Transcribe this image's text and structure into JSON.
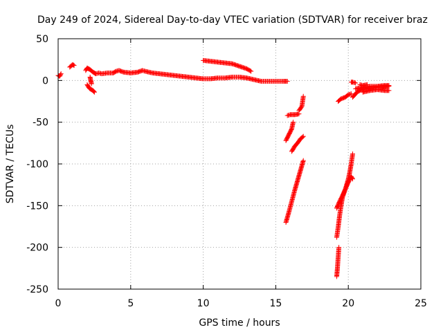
{
  "chart_data": {
    "type": "scatter",
    "title": "Day 249 of 2024, Sidereal Day-to-day VTEC variation (SDTVAR) for receiver braz",
    "xlabel": "GPS time / hours",
    "ylabel": "SDTVAR / TECUs",
    "xlim": [
      0,
      25
    ],
    "ylim": [
      -250,
      50
    ],
    "xticks": [
      0,
      5,
      10,
      15,
      20,
      25
    ],
    "yticks": [
      50,
      0,
      -50,
      -100,
      -150,
      -200,
      -250
    ],
    "grid": true,
    "legend": "none",
    "marker": "+",
    "color": "#ff0000",
    "series": [
      {
        "segments": [
          [
            [
              0.0,
              6
            ],
            [
              0.1,
              5
            ],
            [
              0.2,
              8
            ]
          ],
          [
            [
              0.8,
              16
            ],
            [
              1.0,
              19
            ],
            [
              1.1,
              18
            ]
          ],
          [
            [
              1.9,
              12
            ],
            [
              2.0,
              15
            ],
            [
              2.2,
              13
            ],
            [
              2.4,
              10
            ],
            [
              2.6,
              8
            ],
            [
              2.8,
              9
            ],
            [
              3.0,
              8
            ],
            [
              3.4,
              9
            ],
            [
              3.8,
              9
            ],
            [
              4.0,
              11
            ],
            [
              4.2,
              12
            ],
            [
              4.5,
              10
            ],
            [
              5.0,
              9
            ],
            [
              5.5,
              10
            ],
            [
              5.8,
              12
            ],
            [
              6.0,
              11
            ],
            [
              6.5,
              9
            ],
            [
              7.0,
              8
            ],
            [
              7.5,
              7
            ],
            [
              8.0,
              6
            ],
            [
              8.5,
              5
            ],
            [
              9.0,
              4
            ],
            [
              9.5,
              3
            ],
            [
              10.0,
              2
            ],
            [
              10.5,
              2
            ],
            [
              11.0,
              3
            ],
            [
              11.5,
              3
            ],
            [
              12.0,
              4
            ],
            [
              12.5,
              4
            ],
            [
              13.0,
              3
            ],
            [
              13.5,
              1
            ],
            [
              14.0,
              -1
            ],
            [
              14.5,
              -1
            ],
            [
              15.0,
              -1
            ],
            [
              15.5,
              -1
            ],
            [
              15.8,
              -1
            ]
          ],
          [
            [
              2.0,
              -5
            ],
            [
              2.1,
              -8
            ],
            [
              2.2,
              -10
            ],
            [
              2.4,
              -12
            ],
            [
              2.5,
              -14
            ]
          ],
          [
            [
              2.2,
              4
            ],
            [
              2.25,
              0
            ],
            [
              2.3,
              -4
            ]
          ],
          [
            [
              10.0,
              24
            ],
            [
              10.5,
              23
            ],
            [
              11.0,
              22
            ],
            [
              11.5,
              21
            ],
            [
              12.0,
              20
            ],
            [
              12.5,
              17
            ],
            [
              13.0,
              14
            ],
            [
              13.3,
              11
            ]
          ],
          [
            [
              15.7,
              -170
            ],
            [
              15.9,
              -158
            ],
            [
              16.1,
              -145
            ],
            [
              16.3,
              -132
            ],
            [
              16.5,
              -120
            ],
            [
              16.7,
              -108
            ],
            [
              16.9,
              -96
            ]
          ],
          [
            [
              15.7,
              -72
            ],
            [
              15.9,
              -65
            ],
            [
              16.1,
              -58
            ],
            [
              16.2,
              -50
            ]
          ],
          [
            [
              15.8,
              -42
            ],
            [
              16.0,
              -41
            ],
            [
              16.3,
              -41
            ],
            [
              16.6,
              -40
            ]
          ],
          [
            [
              16.1,
              -85
            ],
            [
              16.3,
              -79
            ],
            [
              16.5,
              -75
            ],
            [
              16.7,
              -70
            ],
            [
              16.9,
              -67
            ]
          ],
          [
            [
              16.6,
              -36
            ],
            [
              16.8,
              -31
            ],
            [
              16.9,
              -19
            ]
          ],
          [
            [
              19.2,
              -188
            ],
            [
              19.3,
              -176
            ],
            [
              19.4,
              -162
            ],
            [
              19.5,
              -150
            ],
            [
              19.6,
              -140
            ],
            [
              19.8,
              -130
            ],
            [
              20.0,
              -118
            ],
            [
              20.1,
              -110
            ],
            [
              20.2,
              -100
            ],
            [
              20.3,
              -88
            ]
          ],
          [
            [
              19.2,
              -235
            ],
            [
              19.25,
              -225
            ],
            [
              19.3,
              -212
            ],
            [
              19.35,
              -200
            ]
          ],
          [
            [
              19.2,
              -153
            ],
            [
              19.4,
              -145
            ],
            [
              19.6,
              -138
            ],
            [
              19.8,
              -130
            ],
            [
              20.0,
              -122
            ],
            [
              20.2,
              -115
            ],
            [
              20.3,
              -118
            ]
          ],
          [
            [
              19.3,
              -25
            ],
            [
              19.5,
              -22
            ],
            [
              19.8,
              -20
            ],
            [
              20.0,
              -17
            ],
            [
              20.2,
              -16
            ]
          ],
          [
            [
              20.2,
              -2
            ],
            [
              20.3,
              -2
            ],
            [
              20.5,
              -3
            ]
          ],
          [
            [
              20.3,
              -20
            ],
            [
              20.6,
              -14
            ],
            [
              20.9,
              -11
            ],
            [
              21.2,
              -10
            ],
            [
              21.6,
              -9
            ],
            [
              22.0,
              -8
            ],
            [
              22.4,
              -8
            ],
            [
              22.8,
              -7
            ]
          ],
          [
            [
              20.5,
              -10
            ],
            [
              20.8,
              -9
            ],
            [
              21.1,
              -8
            ],
            [
              21.5,
              -7
            ],
            [
              22.0,
              -7
            ],
            [
              22.5,
              -6
            ],
            [
              22.8,
              -6
            ]
          ],
          [
            [
              21.0,
              -14
            ],
            [
              21.5,
              -12
            ],
            [
              22.0,
              -11
            ],
            [
              22.5,
              -12
            ],
            [
              22.8,
              -12
            ]
          ],
          [
            [
              20.8,
              -5
            ],
            [
              21.0,
              -6
            ],
            [
              21.3,
              -5
            ]
          ]
        ]
      }
    ]
  }
}
